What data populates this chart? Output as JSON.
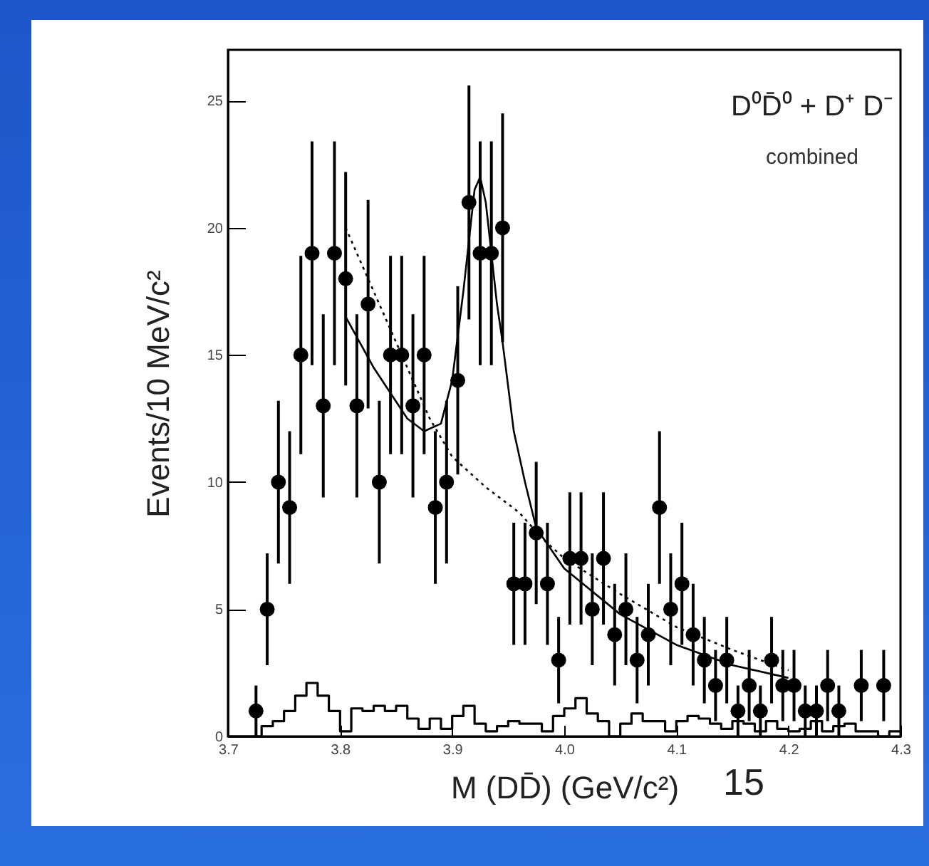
{
  "chart_data": {
    "type": "scatter",
    "xlabel": "M (DD̄) (GeV/c²)",
    "ylabel": "Events/10 MeV/c²",
    "xlim": [
      3.7,
      4.3
    ],
    "ylim": [
      0,
      27
    ],
    "xticks": [
      3.7,
      3.8,
      3.9,
      {
        "value": 4,
        "label": "4.0"
      },
      4.1,
      4.2,
      4.3
    ],
    "yticks": [
      0,
      5,
      10,
      15,
      20,
      25
    ],
    "grid": false,
    "annotations": [
      "D⁰D̄⁰ + D⁺ D⁻",
      "combined",
      "15"
    ],
    "series": [
      {
        "type": "step",
        "color": "#000000",
        "x": [
          3.7,
          3.71,
          3.72,
          3.73,
          3.74,
          3.75,
          3.76,
          3.77,
          3.78,
          3.79,
          3.8,
          3.81,
          3.82,
          3.83,
          3.84,
          3.85,
          3.86,
          3.87,
          3.88,
          3.89,
          3.9,
          3.91,
          3.92,
          3.93,
          3.94,
          3.95,
          3.96,
          3.97,
          3.98,
          3.99,
          4.0,
          4.01,
          4.02,
          4.03,
          4.04,
          4.05,
          4.06,
          4.07,
          4.08,
          4.09,
          4.1,
          4.11,
          4.12,
          4.13,
          4.14,
          4.15,
          4.16,
          4.17,
          4.18,
          4.19,
          4.2,
          4.21,
          4.22,
          4.23,
          4.24,
          4.25,
          4.26,
          4.27,
          4.28,
          4.29,
          4.3
        ],
        "values": [
          0,
          0,
          0,
          0.4,
          0.6,
          1.0,
          1.6,
          2.1,
          1.6,
          1.0,
          0.2,
          1.1,
          1.0,
          1.2,
          1.0,
          1.2,
          0.7,
          0.3,
          0.7,
          0.3,
          0.8,
          1.2,
          0.5,
          0.2,
          0.4,
          0.6,
          0.5,
          0.5,
          0.2,
          0.8,
          1.1,
          1.5,
          0.9,
          0.6,
          0,
          0.5,
          0.9,
          0.6,
          0.6,
          0.2,
          0.6,
          0.8,
          0.7,
          0.5,
          0.3,
          0.6,
          0.5,
          0.2,
          0.6,
          0.3,
          0.2,
          0.3,
          0.6,
          0.2,
          0.4,
          0.5,
          0.2,
          0.2,
          0,
          0.2,
          0.2
        ]
      },
      {
        "type": "line",
        "line_style": "dotted",
        "color": "#000000",
        "x": [
          3.805,
          3.83,
          3.86,
          3.88,
          3.9,
          3.93,
          3.96,
          3.98,
          4.0,
          4.05,
          4.1,
          4.15,
          4.2
        ],
        "values": [
          20,
          17.5,
          14.5,
          12.5,
          11,
          9.8,
          8.8,
          7.8,
          7,
          5.6,
          4.3,
          3.4,
          2.6
        ]
      },
      {
        "type": "line",
        "line_style": "solid",
        "color": "#000000",
        "x": [
          3.805,
          3.83,
          3.86,
          3.875,
          3.89,
          3.9,
          3.91,
          3.92,
          3.925,
          3.93,
          3.94,
          3.945,
          3.955,
          3.965,
          3.975,
          4.0,
          4.05,
          4.1,
          4.15,
          4.2
        ],
        "values": [
          16.5,
          14.5,
          12.5,
          12,
          12.3,
          14,
          17.5,
          21.5,
          22,
          21,
          17,
          15.5,
          12,
          10,
          8.2,
          6.6,
          4.8,
          3.6,
          2.8,
          2.3
        ]
      },
      {
        "marker": "circle",
        "color": "#000000",
        "x": [
          3.725,
          3.735,
          3.745,
          3.755,
          3.765,
          3.775,
          3.785,
          3.795,
          3.805,
          3.815,
          3.825,
          3.835,
          3.845,
          3.855,
          3.865,
          3.875,
          3.885,
          3.895,
          3.905,
          3.915,
          3.925,
          3.935,
          3.945,
          3.955,
          3.965,
          3.975,
          3.985,
          3.995,
          4.005,
          4.015,
          4.025,
          4.035,
          4.045,
          4.055,
          4.065,
          4.075,
          4.085,
          4.095,
          4.105,
          4.115,
          4.125,
          4.135,
          4.145,
          4.155,
          4.165,
          4.175,
          4.185,
          4.195,
          4.205,
          4.215,
          4.225,
          4.235,
          4.245,
          4.265,
          4.285
        ],
        "values": [
          1,
          5,
          10,
          9,
          15,
          19,
          13,
          19,
          18,
          13,
          17,
          10,
          15,
          15,
          13,
          15,
          9,
          10,
          14,
          21,
          19,
          19,
          20,
          6,
          6,
          8,
          6,
          3,
          7,
          7,
          5,
          7,
          4,
          5,
          3,
          4,
          9,
          5,
          6,
          4,
          3,
          2,
          3,
          1,
          2,
          1,
          3,
          2,
          2,
          1,
          1,
          2,
          1,
          2,
          2
        ],
        "errors": [
          1,
          2.2,
          3.2,
          3,
          3.9,
          4.4,
          3.6,
          4.4,
          4.2,
          3.6,
          4.1,
          3.2,
          3.9,
          3.9,
          3.6,
          3.9,
          3,
          3.2,
          3.7,
          4.6,
          4.4,
          4.4,
          4.5,
          2.4,
          2.4,
          2.8,
          2.4,
          1.7,
          2.6,
          2.6,
          2.2,
          2.6,
          2,
          2.2,
          1.7,
          2,
          3,
          2.2,
          2.4,
          2,
          1.7,
          1.4,
          1.7,
          1,
          1.4,
          1,
          1.7,
          1.4,
          1.4,
          1,
          1,
          1.4,
          1,
          1.4,
          1.4
        ]
      }
    ]
  }
}
